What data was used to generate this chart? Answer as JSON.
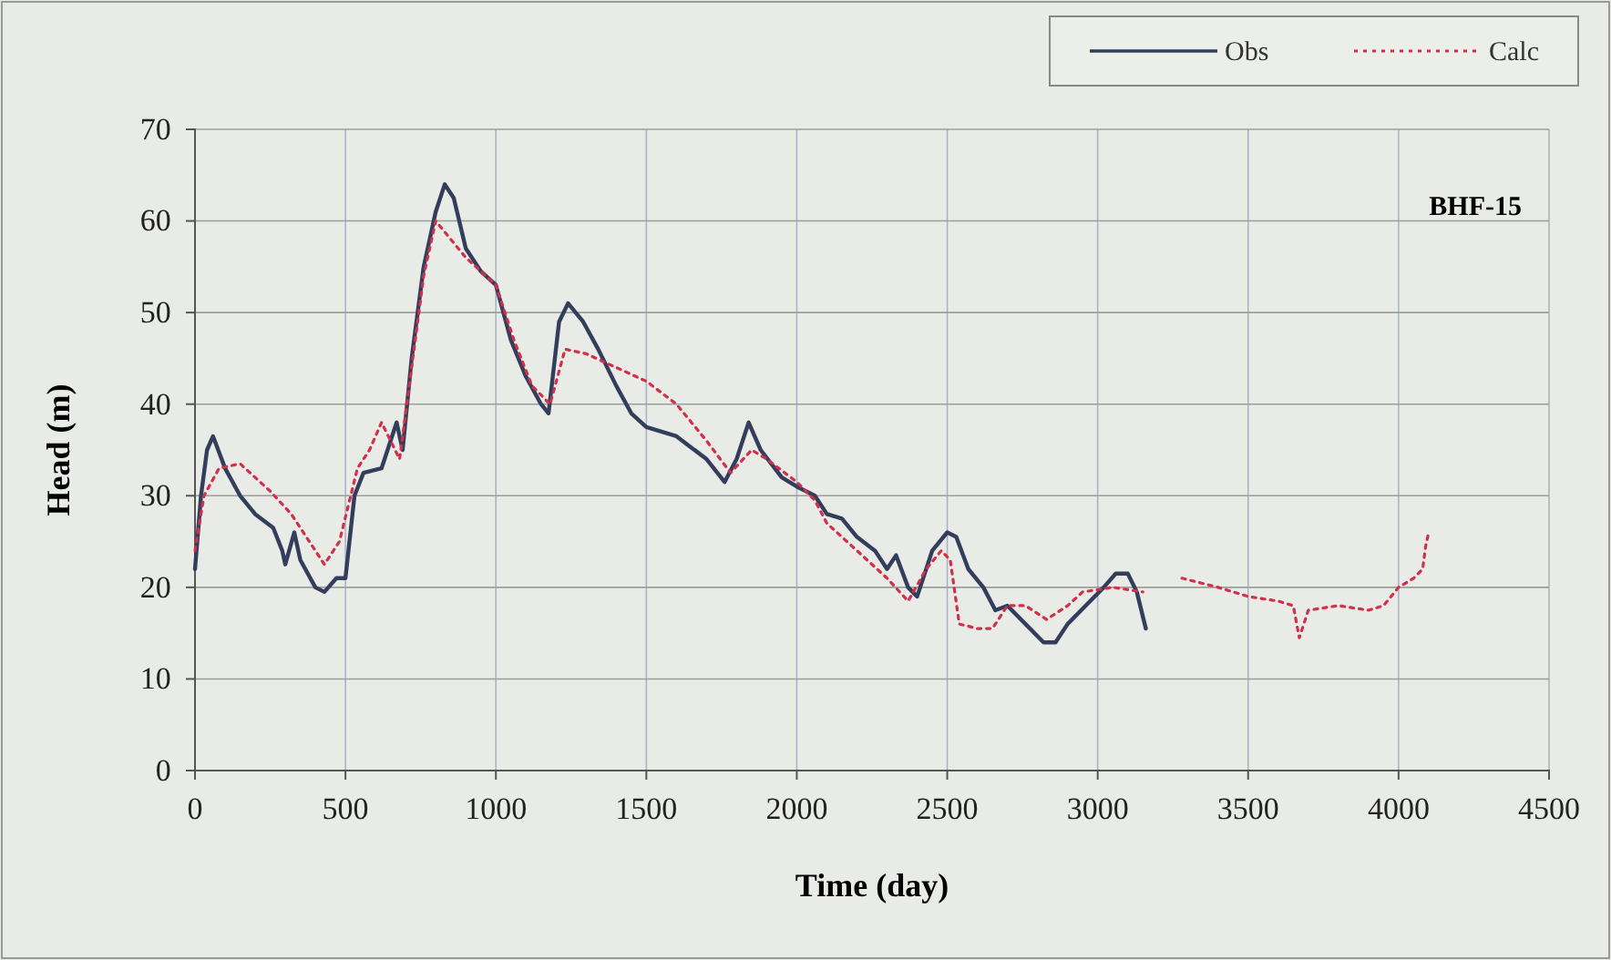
{
  "chart_data": {
    "type": "line",
    "xlabel": "Time (day)",
    "ylabel": "Head (m)",
    "annotations": [
      "BHF-15"
    ],
    "xlim": [
      0,
      4500
    ],
    "xticks": [
      0,
      500,
      1000,
      1500,
      2000,
      2500,
      3000,
      3500,
      4000,
      4500
    ],
    "ylim": [
      0,
      70
    ],
    "yticks": [
      0,
      10,
      20,
      30,
      40,
      50,
      60,
      70
    ],
    "grid": true,
    "legend": "top right",
    "series": [
      {
        "name": "Obs",
        "color": "#333d5c",
        "line_style": "solid",
        "x": [
          0,
          20,
          40,
          60,
          100,
          150,
          200,
          260,
          290,
          300,
          330,
          350,
          400,
          430,
          470,
          500,
          530,
          560,
          620,
          650,
          670,
          690,
          720,
          760,
          800,
          830,
          860,
          900,
          950,
          1000,
          1050,
          1100,
          1150,
          1175,
          1210,
          1240,
          1290,
          1340,
          1400,
          1450,
          1500,
          1600,
          1700,
          1760,
          1800,
          1840,
          1880,
          1950,
          2000,
          2060,
          2100,
          2150,
          2200,
          2260,
          2300,
          2330,
          2370,
          2400,
          2450,
          2500,
          2530,
          2570,
          2620,
          2660,
          2700,
          2760,
          2820,
          2860,
          2900,
          2960,
          3020,
          3060,
          3100,
          3130,
          3160
        ],
        "values": [
          22,
          30,
          35,
          36.5,
          33,
          30,
          28,
          26.5,
          24,
          22.5,
          26,
          23,
          20,
          19.5,
          21,
          21,
          30,
          32.5,
          33,
          36,
          38,
          35,
          45,
          55,
          61,
          64,
          62.5,
          57,
          54.5,
          53,
          47,
          43,
          40,
          39,
          49,
          51,
          49,
          46,
          42,
          39,
          37.5,
          36.5,
          34,
          31.5,
          34,
          38,
          35,
          32,
          31,
          30,
          28,
          27.5,
          25.5,
          24,
          22,
          23.5,
          20,
          19,
          24,
          26,
          25.5,
          22,
          20,
          17.5,
          18,
          16,
          14,
          14,
          16,
          18,
          20,
          21.5,
          21.5,
          19.5,
          15.5
        ]
      },
      {
        "name": "Calc",
        "color": "#d0304a",
        "line_style": "dotted",
        "x": [
          0,
          30,
          80,
          150,
          250,
          320,
          380,
          430,
          480,
          540,
          580,
          620,
          680,
          720,
          760,
          800,
          850,
          900,
          1000,
          1060,
          1120,
          1180,
          1230,
          1300,
          1400,
          1500,
          1600,
          1700,
          1780,
          1850,
          1900,
          2000,
          2060,
          2100,
          2200,
          2300,
          2370,
          2430,
          2480,
          2510,
          2540,
          2600,
          2650,
          2700,
          2760,
          2830,
          2900,
          2950,
          3050,
          3150,
          3220,
          3280,
          3400,
          3500,
          3600,
          3650,
          3670,
          3700,
          3800,
          3900,
          3950,
          4000,
          4050,
          4080,
          4090,
          4100
        ],
        "values": [
          24,
          30,
          33,
          33.5,
          30.5,
          28,
          25,
          22.5,
          25,
          33,
          35,
          38,
          34,
          44,
          54,
          60,
          58,
          56,
          53,
          47,
          42,
          40,
          46,
          45.5,
          44,
          42.5,
          40,
          36,
          32.5,
          35,
          34,
          31.5,
          29.5,
          27,
          24,
          21,
          18.5,
          22,
          24,
          23,
          16,
          15.5,
          15.5,
          18,
          18,
          16.5,
          18,
          19.5,
          20,
          19.5,
          null,
          21,
          20,
          19,
          18.5,
          18,
          14.5,
          17.5,
          18,
          17.5,
          18,
          20,
          21,
          22,
          24.5,
          26
        ]
      }
    ]
  }
}
